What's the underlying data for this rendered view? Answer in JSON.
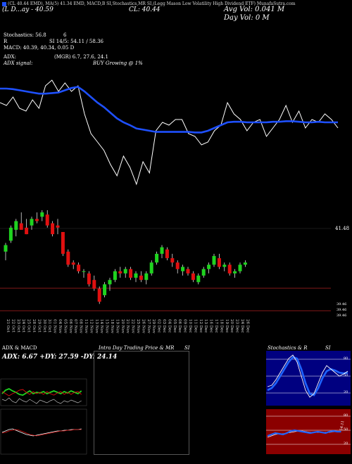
{
  "header": {
    "line": "(CL 40.44 EMD), MA(5) 41.34 EMD, MACD,B SI,Stochastics,MR SI,(Legg Mason Low Volatility High Dividend ETF) MunafaSutra.com",
    "price_line": "(L  D...ay - 40.59",
    "cl_line": "CL: 40.44",
    "avg_vol": "Avg Vol: 0.041 M",
    "day_vol": "Day Vol: 0   M"
  },
  "indicators": {
    "stoch_label": "Stochastics: 56.8",
    "stoch_value": "6",
    "si_label": "R",
    "si_value": "SI 14/5: 54.11 / 58.36",
    "macd": "MACD: 40.39, 40.34, 0.05 D",
    "adx_label": "ADX:",
    "adx_value": "(MGR) 6.7, 27.6, 24.1",
    "adx_signal_label": "ADX signal:",
    "adx_signal_value": "BUY Growing @ 1%"
  },
  "price_panel": {
    "right_label_top": "41.48",
    "right_label_low1": "39.46",
    "right_label_low2": "39.46",
    "right_label_low3": "39.46"
  },
  "x_labels": [
    "21 Oct",
    "22 Oct",
    "23 Oct",
    "24 Oct",
    "25 Oct",
    "28 Oct",
    "29 Oct",
    "30 Oct",
    "31 Oct",
    "01 Nov",
    "04 Nov",
    "05 Nov",
    "06 Nov",
    "07 Nov",
    "08 Nov",
    "11 Nov",
    "12 Nov",
    "13 Nov",
    "14 Nov",
    "15 Nov",
    "18 Nov",
    "19 Nov",
    "20 Nov",
    "21 Nov",
    "22 Nov",
    "25 Nov",
    "26 Nov",
    "27 Nov",
    "29 Nov",
    "02 Dec",
    "03 Dec",
    "04 Dec",
    "05 Dec",
    "06 Dec",
    "09 Dec",
    "10 Dec",
    "11 Dec",
    "12 Dec",
    "13 Dec",
    "16 Dec",
    "17 Dec",
    "18 Dec",
    "19 Dec",
    "20 Dec",
    "23 Dec",
    "24 Dec",
    "26 Dec"
  ],
  "panels": {
    "adx_title": "ADX  & MACD",
    "adx_values": "ADX: 6.67 +DY: 27.59 -DY: 24.14",
    "intraday_title": "Intra Day Trading Price  & MR",
    "intraday_si": "SI",
    "stoch_title": "Stochastics & R",
    "stoch_si": "SI",
    "stoch_levels": [
      "80",
      "50",
      "20"
    ],
    "rsi_levels": [
      "80",
      "50",
      "20"
    ],
    "rsi_right_label": "54.11"
  },
  "colors": {
    "up": "#1fd31f",
    "down": "#e01010",
    "ma": "#1e50ff",
    "stoch_bg": "#000080",
    "rsi_bg": "#8b0000",
    "support": "#b22222"
  },
  "chart_data": [
    {
      "type": "line",
      "name": "ma-and-price",
      "series": [
        {
          "name": "price",
          "values": [
            40.9,
            40.85,
            41.0,
            40.8,
            40.75,
            40.95,
            40.8,
            41.2,
            41.3,
            41.1,
            41.25,
            41.1,
            41.2,
            40.7,
            40.35,
            40.2,
            40.05,
            39.8,
            39.6,
            39.95,
            39.75,
            39.45,
            39.85,
            39.65,
            40.4,
            40.55,
            40.5,
            40.6,
            40.6,
            40.35,
            40.3,
            40.15,
            40.2,
            40.4,
            40.5,
            40.9,
            40.7,
            40.6,
            40.4,
            40.55,
            40.6,
            40.3,
            40.45,
            40.6,
            40.85,
            40.55,
            40.75,
            40.45,
            40.6,
            40.55,
            40.7,
            40.6,
            40.45
          ]
        },
        {
          "name": "ma",
          "values": [
            41.15,
            41.15,
            41.14,
            41.12,
            41.1,
            41.08,
            41.06,
            41.06,
            41.07,
            41.08,
            41.12,
            41.16,
            41.18,
            41.1,
            41.0,
            40.9,
            40.82,
            40.72,
            40.62,
            40.55,
            40.5,
            40.44,
            40.42,
            40.4,
            40.38,
            40.38,
            40.38,
            40.38,
            40.38,
            40.38,
            40.37,
            40.37,
            40.4,
            40.45,
            40.5,
            40.55,
            40.56,
            40.56,
            40.55,
            40.55,
            40.55,
            40.55,
            40.56,
            40.56,
            40.57,
            40.57,
            40.56,
            40.55,
            40.55,
            40.56,
            40.55,
            40.55,
            40.55
          ]
        }
      ]
    },
    {
      "type": "bar",
      "name": "candles",
      "values": [
        {
          "o": 40.55,
          "h": 40.75,
          "l": 40.35,
          "c": 40.7
        },
        {
          "o": 40.8,
          "h": 41.15,
          "l": 40.75,
          "c": 41.1
        },
        {
          "o": 41.05,
          "h": 41.3,
          "l": 40.9,
          "c": 41.25
        },
        {
          "o": 41.2,
          "h": 41.45,
          "l": 41.1,
          "c": 41.05
        },
        {
          "o": 41.1,
          "h": 41.3,
          "l": 40.95,
          "c": 40.95
        },
        {
          "o": 41.15,
          "h": 41.35,
          "l": 41.05,
          "c": 41.3
        },
        {
          "o": 41.3,
          "h": 41.45,
          "l": 41.2,
          "c": 41.25
        },
        {
          "o": 41.35,
          "h": 41.5,
          "l": 41.25,
          "c": 41.45
        },
        {
          "o": 41.4,
          "h": 41.5,
          "l": 41.1,
          "c": 41.15
        },
        {
          "o": 41.2,
          "h": 41.25,
          "l": 40.9,
          "c": 40.95
        },
        {
          "o": 41.15,
          "h": 41.3,
          "l": 40.95,
          "c": 41.1
        },
        {
          "o": 41.0,
          "h": 41.0,
          "l": 40.45,
          "c": 40.5
        },
        {
          "o": 40.55,
          "h": 40.6,
          "l": 40.2,
          "c": 40.25
        },
        {
          "o": 40.3,
          "h": 40.35,
          "l": 40.15,
          "c": 40.25
        },
        {
          "o": 40.25,
          "h": 40.3,
          "l": 40.05,
          "c": 40.1
        },
        {
          "o": 40.1,
          "h": 40.15,
          "l": 39.95,
          "c": 40.1
        },
        {
          "o": 40.05,
          "h": 40.1,
          "l": 39.75,
          "c": 39.8
        },
        {
          "o": 39.9,
          "h": 40.0,
          "l": 39.65,
          "c": 39.7
        },
        {
          "o": 39.7,
          "h": 39.75,
          "l": 39.35,
          "c": 39.4
        },
        {
          "o": 39.55,
          "h": 39.85,
          "l": 39.5,
          "c": 39.8
        },
        {
          "o": 39.8,
          "h": 39.95,
          "l": 39.65,
          "c": 39.9
        },
        {
          "o": 39.9,
          "h": 40.15,
          "l": 39.85,
          "c": 40.1
        },
        {
          "o": 40.1,
          "h": 40.2,
          "l": 39.95,
          "c": 40.05
        },
        {
          "o": 40.05,
          "h": 40.2,
          "l": 39.95,
          "c": 40.15
        },
        {
          "o": 40.15,
          "h": 40.2,
          "l": 39.9,
          "c": 39.95
        },
        {
          "o": 39.95,
          "h": 40.1,
          "l": 39.85,
          "c": 40.05
        },
        {
          "o": 40.0,
          "h": 40.1,
          "l": 39.85,
          "c": 39.9
        },
        {
          "o": 39.9,
          "h": 40.1,
          "l": 39.8,
          "c": 40.05
        },
        {
          "o": 40.05,
          "h": 40.35,
          "l": 40.0,
          "c": 40.3
        },
        {
          "o": 40.3,
          "h": 40.55,
          "l": 40.25,
          "c": 40.5
        },
        {
          "o": 40.5,
          "h": 40.7,
          "l": 40.4,
          "c": 40.65
        },
        {
          "o": 40.6,
          "h": 40.65,
          "l": 40.35,
          "c": 40.4
        },
        {
          "o": 40.4,
          "h": 40.5,
          "l": 40.2,
          "c": 40.3
        },
        {
          "o": 40.3,
          "h": 40.35,
          "l": 40.05,
          "c": 40.15
        },
        {
          "o": 40.1,
          "h": 40.25,
          "l": 40.0,
          "c": 40.2
        },
        {
          "o": 40.15,
          "h": 40.2,
          "l": 40.0,
          "c": 40.05
        },
        {
          "o": 40.05,
          "h": 40.1,
          "l": 39.85,
          "c": 39.9
        },
        {
          "o": 39.85,
          "h": 40.05,
          "l": 39.8,
          "c": 40.0
        },
        {
          "o": 40.0,
          "h": 40.2,
          "l": 39.95,
          "c": 40.15
        },
        {
          "o": 40.15,
          "h": 40.3,
          "l": 40.05,
          "c": 40.25
        },
        {
          "o": 40.25,
          "h": 40.5,
          "l": 40.2,
          "c": 40.45
        },
        {
          "o": 40.4,
          "h": 40.5,
          "l": 40.15,
          "c": 40.2
        },
        {
          "o": 40.2,
          "h": 40.3,
          "l": 40.1,
          "c": 40.25
        },
        {
          "o": 40.25,
          "h": 40.3,
          "l": 40.0,
          "c": 40.05
        },
        {
          "o": 40.05,
          "h": 40.15,
          "l": 39.95,
          "c": 40.1
        },
        {
          "o": 40.1,
          "h": 40.3,
          "l": 40.05,
          "c": 40.25
        },
        {
          "o": 40.25,
          "h": 40.35,
          "l": 40.2,
          "c": 40.3
        }
      ]
    }
  ]
}
